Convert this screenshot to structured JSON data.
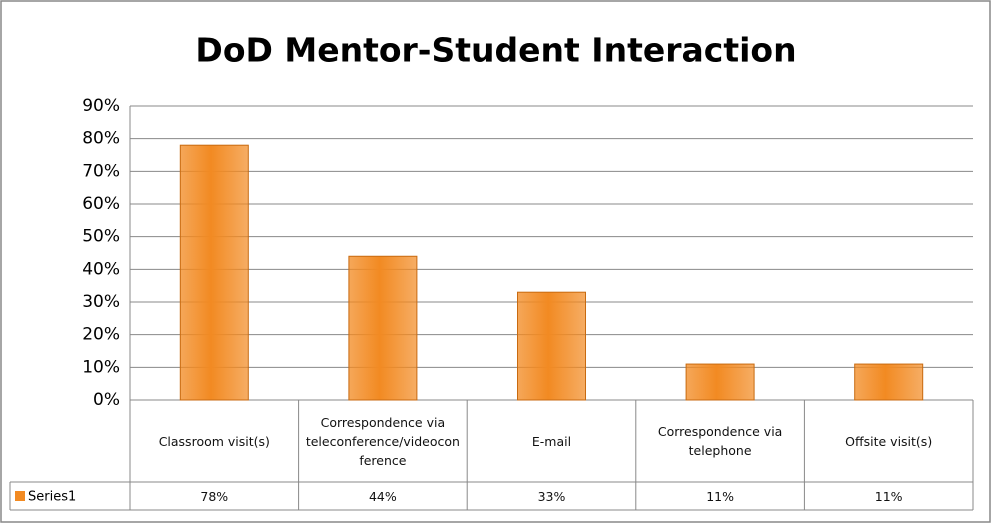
{
  "chart_data": {
    "type": "bar",
    "title": "DoD Mentor-Student Interaction",
    "categories": [
      "Classroom visit(s)",
      "Correspondence via teleconference/videoconference",
      "E-mail",
      "Correspondence via telephone",
      "Offsite visit(s)"
    ],
    "series": [
      {
        "name": "Series1",
        "color": "#f28a22",
        "values": [
          78,
          44,
          33,
          11,
          11
        ],
        "value_labels": [
          "78%",
          "44%",
          "33%",
          "11%",
          "11%"
        ]
      }
    ],
    "ylim": [
      0,
      90
    ],
    "yticks": [
      {
        "value": 0,
        "label": "0%"
      },
      {
        "value": 10,
        "label": "10%"
      },
      {
        "value": 20,
        "label": "20%"
      },
      {
        "value": 30,
        "label": "30%"
      },
      {
        "value": 40,
        "label": "40%"
      },
      {
        "value": 50,
        "label": "50%"
      },
      {
        "value": 60,
        "label": "60%"
      },
      {
        "value": 70,
        "label": "70%"
      },
      {
        "value": 80,
        "label": "80%"
      },
      {
        "value": 90,
        "label": "90%"
      }
    ],
    "grid": true
  }
}
